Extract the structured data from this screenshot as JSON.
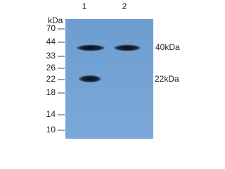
{
  "blot": {
    "unit_label": "kDa",
    "lanes": [
      "1",
      "2"
    ],
    "markers": [
      "70",
      "44",
      "33",
      "26",
      "22",
      "18",
      "14",
      "10"
    ],
    "band_labels": [
      "40kDa",
      "22kDa"
    ]
  }
}
